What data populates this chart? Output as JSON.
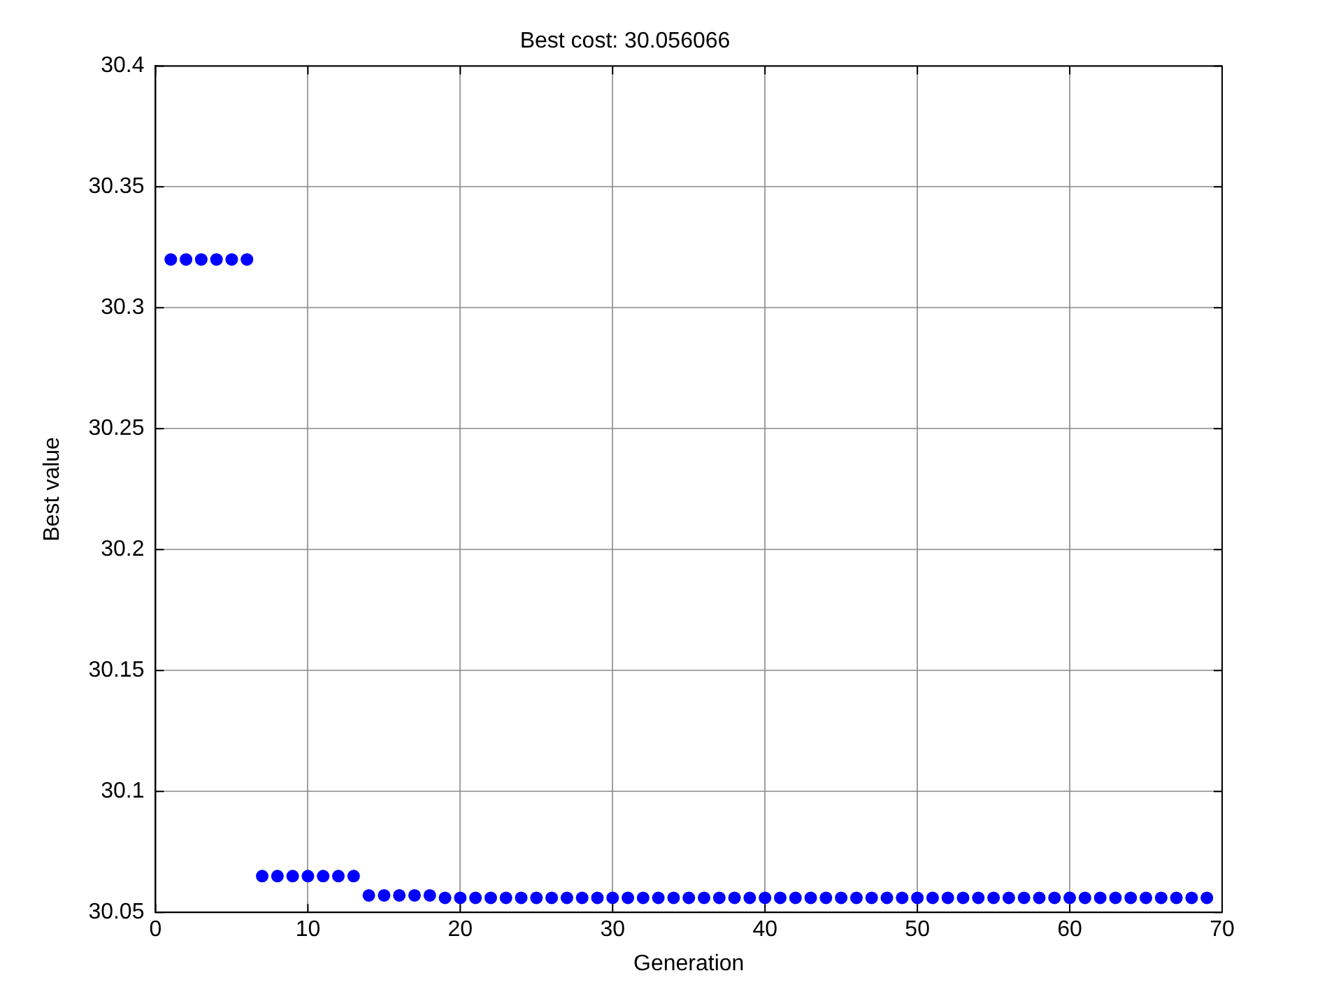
{
  "chart_data": {
    "type": "scatter",
    "title": "Best cost: 30.056066",
    "xlabel": "Generation",
    "ylabel": "Best value",
    "x": [
      1,
      2,
      3,
      4,
      5,
      6,
      7,
      8,
      9,
      10,
      11,
      12,
      13,
      14,
      15,
      16,
      17,
      18,
      19,
      20,
      21,
      22,
      23,
      24,
      25,
      26,
      27,
      28,
      29,
      30,
      31,
      32,
      33,
      34,
      35,
      36,
      37,
      38,
      39,
      40,
      41,
      42,
      43,
      44,
      45,
      46,
      47,
      48,
      49,
      50,
      51,
      52,
      53,
      54,
      55,
      56,
      57,
      58,
      59,
      60,
      61,
      62,
      63,
      64,
      65,
      66,
      67,
      68,
      69
    ],
    "series": [
      {
        "color": "#0000ff",
        "values": [
          30.32,
          30.32,
          30.32,
          30.32,
          30.32,
          30.32,
          30.065,
          30.065,
          30.065,
          30.065,
          30.065,
          30.065,
          30.065,
          30.057,
          30.057,
          30.057,
          30.057,
          30.057,
          30.056,
          30.056,
          30.056,
          30.056,
          30.056,
          30.056,
          30.056,
          30.056,
          30.056,
          30.056,
          30.056,
          30.056,
          30.056,
          30.056,
          30.056,
          30.056,
          30.056,
          30.056,
          30.056,
          30.056,
          30.056,
          30.056,
          30.056,
          30.056,
          30.056,
          30.056,
          30.056,
          30.056,
          30.056,
          30.056,
          30.056,
          30.056,
          30.056,
          30.056,
          30.056,
          30.056,
          30.056,
          30.056,
          30.056,
          30.056,
          30.056,
          30.056,
          30.056,
          30.056,
          30.056,
          30.056,
          30.056,
          30.056,
          30.056,
          30.056,
          30.056
        ]
      }
    ],
    "xlim": [
      0,
      70
    ],
    "xticks": [
      0,
      10,
      20,
      30,
      40,
      50,
      60,
      70
    ],
    "ylim": [
      30.05,
      30.4
    ],
    "yticks": [
      30.05,
      30.1,
      30.15,
      30.2,
      30.25,
      30.3,
      30.35,
      30.4
    ],
    "grid": true,
    "marker": "circle",
    "legend": false
  }
}
